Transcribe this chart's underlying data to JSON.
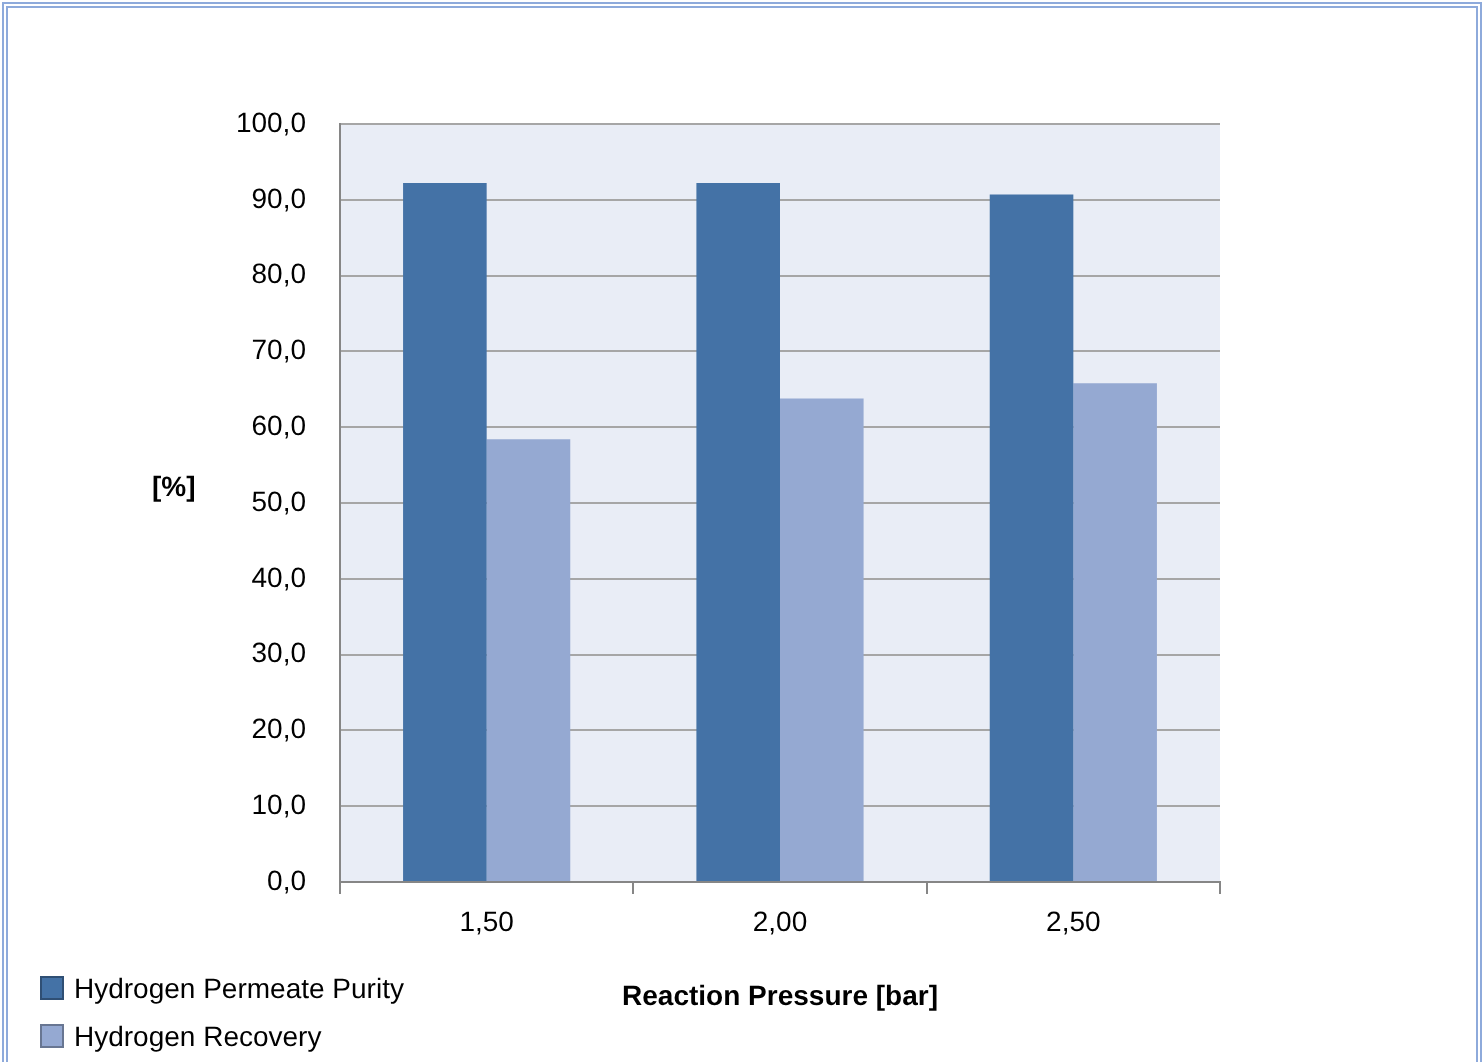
{
  "chart_data": {
    "type": "bar",
    "categories": [
      "1,50",
      "2,00",
      "2,50"
    ],
    "series": [
      {
        "name": "Hydrogen Permeate Purity",
        "color": "#4472a6",
        "values": [
          92.2,
          92.2,
          90.7
        ]
      },
      {
        "name": "Hydrogen Recovery",
        "color": "#95a9d2",
        "values": [
          58.4,
          63.8,
          65.8
        ]
      }
    ],
    "xlabel": "Reaction Pressure [bar]",
    "ylabel": "[%]",
    "ylim": [
      0,
      100
    ],
    "yticks": [
      {
        "value": 0,
        "label": "0,0"
      },
      {
        "value": 10,
        "label": "10,0"
      },
      {
        "value": 20,
        "label": "20,0"
      },
      {
        "value": 30,
        "label": "30,0"
      },
      {
        "value": 40,
        "label": "40,0"
      },
      {
        "value": 50,
        "label": "50,0"
      },
      {
        "value": 60,
        "label": "60,0"
      },
      {
        "value": 70,
        "label": "70,0"
      },
      {
        "value": 80,
        "label": "80,0"
      },
      {
        "value": 90,
        "label": "90,0"
      },
      {
        "value": 100,
        "label": "100,0"
      }
    ],
    "grid": "y",
    "legend": "bottom left"
  }
}
